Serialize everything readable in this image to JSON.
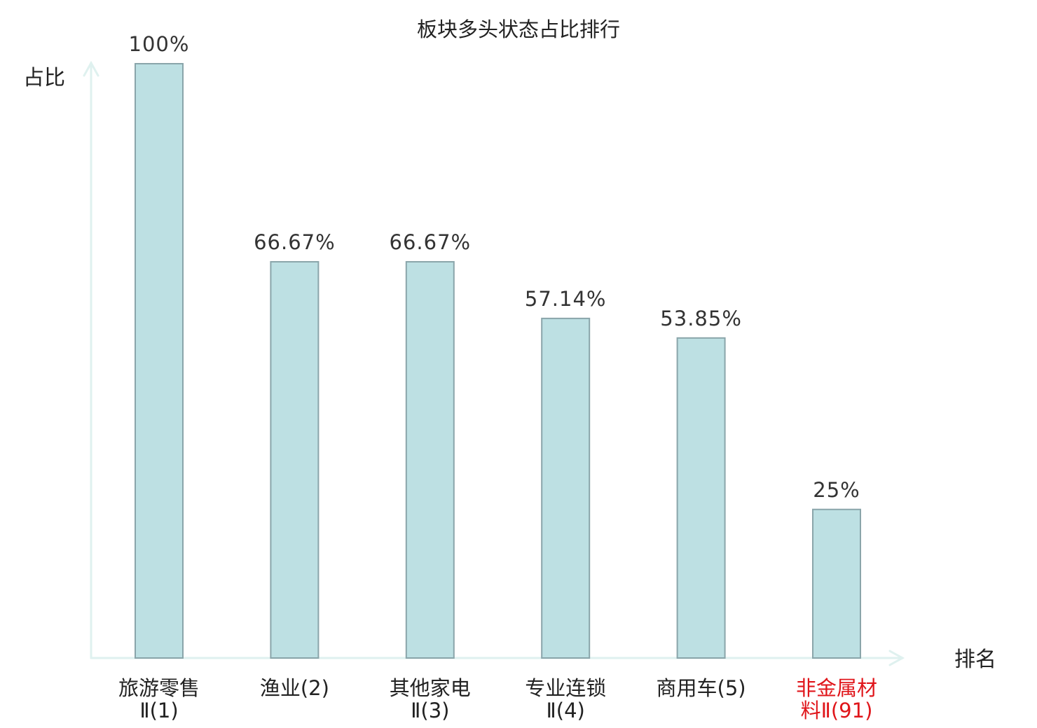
{
  "chart_data": {
    "type": "bar",
    "title": "板块多头状态占比排行",
    "xlabel": "排名",
    "ylabel": "占比",
    "ylim": [
      0,
      100
    ],
    "grid": false,
    "legend": "none",
    "categories": [
      {
        "lines": [
          "旅游零售",
          "Ⅱ(1)"
        ],
        "highlight": false
      },
      {
        "lines": [
          "渔业(2)"
        ],
        "highlight": false
      },
      {
        "lines": [
          "其他家电",
          "Ⅱ(3)"
        ],
        "highlight": false
      },
      {
        "lines": [
          "专业连锁",
          "Ⅱ(4)"
        ],
        "highlight": false
      },
      {
        "lines": [
          "商用车(5)"
        ],
        "highlight": false
      },
      {
        "lines": [
          "非金属材",
          "料Ⅱ(91)"
        ],
        "highlight": true
      }
    ],
    "values": [
      100,
      66.67,
      66.67,
      57.14,
      53.85,
      25
    ],
    "value_labels": [
      "100%",
      "66.67%",
      "66.67%",
      "57.14%",
      "53.85%",
      "25%"
    ],
    "colors": {
      "bar_fill": "#bde0e3",
      "bar_stroke": "#8aa5aa",
      "axis": "#dff1ef",
      "label_normal": "#222222",
      "label_highlight": "#e0161b"
    }
  }
}
